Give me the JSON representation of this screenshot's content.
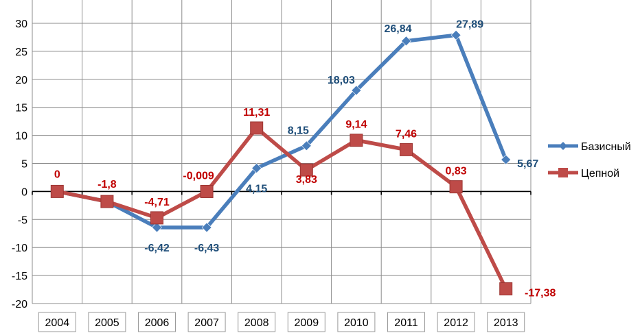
{
  "chart_data": {
    "type": "line",
    "categories": [
      "2004",
      "2005",
      "2006",
      "2007",
      "2008",
      "2009",
      "2010",
      "2011",
      "2012",
      "2013"
    ],
    "ylim": [
      -20,
      30
    ],
    "yticks": [
      30,
      25,
      20,
      15,
      10,
      5,
      0,
      -5,
      -10,
      -15,
      -20
    ],
    "grid": true,
    "legend_position": "right",
    "series": [
      {
        "name": "Базисный",
        "color": "#4a7ebb",
        "marker": "diamond",
        "values": [
          0,
          -1.8,
          -6.42,
          -6.43,
          4.15,
          8.15,
          18.03,
          26.84,
          27.89,
          5.67
        ],
        "labels": [
          "",
          "",
          "-6,42",
          "-6,43",
          "4,15",
          "8,15",
          "18,03",
          "26,84",
          "27,89",
          "5,67"
        ],
        "label_color": "#1f4e79"
      },
      {
        "name": "Цепной",
        "color": "#be4b48",
        "marker": "square",
        "values": [
          0,
          -1.8,
          -4.71,
          -0.009,
          11.31,
          3.83,
          9.14,
          7.46,
          0.83,
          -17.38
        ],
        "labels": [
          "0",
          "-1,8",
          "-4,71",
          "-0,009",
          "11,31",
          "3,83",
          "9,14",
          "7,46",
          "0,83",
          "-17,38"
        ],
        "label_color": "#c00000"
      }
    ]
  }
}
